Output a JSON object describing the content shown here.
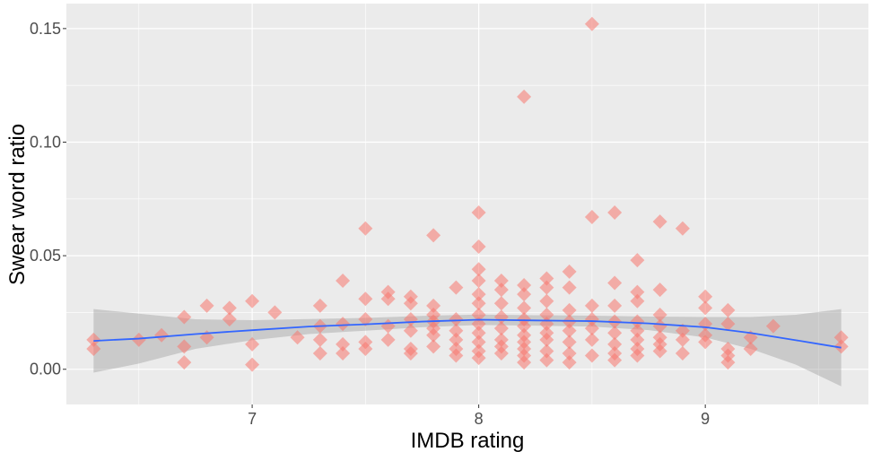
{
  "chart_data": {
    "type": "scatter",
    "title": "",
    "xlabel": "IMDB rating",
    "ylabel": "Swear word ratio",
    "xlim": [
      6.18,
      9.72
    ],
    "ylim": [
      -0.0155,
      0.161
    ],
    "x_ticks": [
      {
        "v": 7,
        "label": "7"
      },
      {
        "v": 8,
        "label": "8"
      },
      {
        "v": 9,
        "label": "9"
      }
    ],
    "y_ticks": [
      {
        "v": 0.0,
        "label": "0.00"
      },
      {
        "v": 0.05,
        "label": "0.05"
      },
      {
        "v": 0.1,
        "label": "0.10"
      },
      {
        "v": 0.15,
        "label": "0.15"
      }
    ],
    "grid": true,
    "legend": "none",
    "colors": {
      "panel": "#ebebeb",
      "grid": "#ffffff",
      "point": "#f8766d",
      "smooth_line": "#3366ff",
      "ribbon": "#999999"
    },
    "points": [
      [
        6.3,
        0.013
      ],
      [
        6.3,
        0.009
      ],
      [
        6.5,
        0.013
      ],
      [
        6.6,
        0.015
      ],
      [
        6.7,
        0.023
      ],
      [
        6.7,
        0.01
      ],
      [
        6.7,
        0.003
      ],
      [
        6.8,
        0.028
      ],
      [
        6.8,
        0.014
      ],
      [
        6.9,
        0.027
      ],
      [
        6.9,
        0.022
      ],
      [
        7.0,
        0.03
      ],
      [
        7.0,
        0.011
      ],
      [
        7.0,
        0.002
      ],
      [
        7.1,
        0.025
      ],
      [
        7.2,
        0.014
      ],
      [
        7.3,
        0.028
      ],
      [
        7.3,
        0.019
      ],
      [
        7.3,
        0.013
      ],
      [
        7.3,
        0.007
      ],
      [
        7.4,
        0.039
      ],
      [
        7.4,
        0.02
      ],
      [
        7.4,
        0.011
      ],
      [
        7.4,
        0.007
      ],
      [
        7.5,
        0.062
      ],
      [
        7.5,
        0.031
      ],
      [
        7.5,
        0.022
      ],
      [
        7.5,
        0.012
      ],
      [
        7.5,
        0.009
      ],
      [
        7.6,
        0.034
      ],
      [
        7.6,
        0.031
      ],
      [
        7.6,
        0.019
      ],
      [
        7.6,
        0.013
      ],
      [
        7.7,
        0.032
      ],
      [
        7.7,
        0.029
      ],
      [
        7.7,
        0.022
      ],
      [
        7.7,
        0.017
      ],
      [
        7.7,
        0.009
      ],
      [
        7.7,
        0.007
      ],
      [
        7.8,
        0.059
      ],
      [
        7.8,
        0.028
      ],
      [
        7.8,
        0.024
      ],
      [
        7.8,
        0.021
      ],
      [
        7.8,
        0.018
      ],
      [
        7.8,
        0.015
      ],
      [
        7.8,
        0.01
      ],
      [
        7.9,
        0.036
      ],
      [
        7.9,
        0.022
      ],
      [
        7.9,
        0.017
      ],
      [
        7.9,
        0.013
      ],
      [
        7.9,
        0.009
      ],
      [
        7.9,
        0.006
      ],
      [
        8.0,
        0.069
      ],
      [
        8.0,
        0.054
      ],
      [
        8.0,
        0.044
      ],
      [
        8.0,
        0.039
      ],
      [
        8.0,
        0.033
      ],
      [
        8.0,
        0.029
      ],
      [
        8.0,
        0.024
      ],
      [
        8.0,
        0.02
      ],
      [
        8.0,
        0.016
      ],
      [
        8.0,
        0.012
      ],
      [
        8.0,
        0.008
      ],
      [
        8.0,
        0.005
      ],
      [
        8.1,
        0.039
      ],
      [
        8.1,
        0.035
      ],
      [
        8.1,
        0.029
      ],
      [
        8.1,
        0.023
      ],
      [
        8.1,
        0.018
      ],
      [
        8.1,
        0.013
      ],
      [
        8.1,
        0.01
      ],
      [
        8.1,
        0.007
      ],
      [
        8.2,
        0.12
      ],
      [
        8.2,
        0.037
      ],
      [
        8.2,
        0.033
      ],
      [
        8.2,
        0.027
      ],
      [
        8.2,
        0.022
      ],
      [
        8.2,
        0.019
      ],
      [
        8.2,
        0.015
      ],
      [
        8.2,
        0.012
      ],
      [
        8.2,
        0.009
      ],
      [
        8.2,
        0.006
      ],
      [
        8.2,
        0.003
      ],
      [
        8.3,
        0.04
      ],
      [
        8.3,
        0.036
      ],
      [
        8.3,
        0.03
      ],
      [
        8.3,
        0.024
      ],
      [
        8.3,
        0.02
      ],
      [
        8.3,
        0.016
      ],
      [
        8.3,
        0.013
      ],
      [
        8.3,
        0.008
      ],
      [
        8.3,
        0.004
      ],
      [
        8.4,
        0.043
      ],
      [
        8.4,
        0.036
      ],
      [
        8.4,
        0.026
      ],
      [
        8.4,
        0.021
      ],
      [
        8.4,
        0.017
      ],
      [
        8.4,
        0.012
      ],
      [
        8.4,
        0.007
      ],
      [
        8.4,
        0.003
      ],
      [
        8.5,
        0.152
      ],
      [
        8.5,
        0.067
      ],
      [
        8.5,
        0.028
      ],
      [
        8.5,
        0.022
      ],
      [
        8.5,
        0.018
      ],
      [
        8.5,
        0.013
      ],
      [
        8.5,
        0.006
      ],
      [
        8.6,
        0.069
      ],
      [
        8.6,
        0.038
      ],
      [
        8.6,
        0.028
      ],
      [
        8.6,
        0.021
      ],
      [
        8.6,
        0.016
      ],
      [
        8.6,
        0.011
      ],
      [
        8.6,
        0.007
      ],
      [
        8.6,
        0.004
      ],
      [
        8.7,
        0.048
      ],
      [
        8.7,
        0.034
      ],
      [
        8.7,
        0.03
      ],
      [
        8.7,
        0.021
      ],
      [
        8.7,
        0.017
      ],
      [
        8.7,
        0.013
      ],
      [
        8.7,
        0.009
      ],
      [
        8.7,
        0.006
      ],
      [
        8.8,
        0.065
      ],
      [
        8.8,
        0.035
      ],
      [
        8.8,
        0.024
      ],
      [
        8.8,
        0.019
      ],
      [
        8.8,
        0.014
      ],
      [
        8.8,
        0.011
      ],
      [
        8.8,
        0.008
      ],
      [
        8.9,
        0.062
      ],
      [
        8.9,
        0.017
      ],
      [
        8.9,
        0.013
      ],
      [
        8.9,
        0.007
      ],
      [
        9.0,
        0.032
      ],
      [
        9.0,
        0.027
      ],
      [
        9.0,
        0.02
      ],
      [
        9.0,
        0.015
      ],
      [
        9.0,
        0.012
      ],
      [
        9.1,
        0.026
      ],
      [
        9.1,
        0.02
      ],
      [
        9.1,
        0.009
      ],
      [
        9.1,
        0.006
      ],
      [
        9.1,
        0.003
      ],
      [
        9.2,
        0.014
      ],
      [
        9.2,
        0.009
      ],
      [
        9.3,
        0.019
      ],
      [
        9.6,
        0.014
      ],
      [
        9.6,
        0.01
      ]
    ],
    "smooth": [
      {
        "x": 6.3,
        "y": 0.0125,
        "lo": -0.0015,
        "hi": 0.0265
      },
      {
        "x": 6.5,
        "y": 0.0135,
        "lo": 0.0025,
        "hi": 0.0245
      },
      {
        "x": 6.75,
        "y": 0.0155,
        "lo": 0.009,
        "hi": 0.022
      },
      {
        "x": 7.0,
        "y": 0.0172,
        "lo": 0.0128,
        "hi": 0.0216
      },
      {
        "x": 7.25,
        "y": 0.0188,
        "lo": 0.0155,
        "hi": 0.0221
      },
      {
        "x": 7.5,
        "y": 0.0198,
        "lo": 0.017,
        "hi": 0.0226
      },
      {
        "x": 7.75,
        "y": 0.021,
        "lo": 0.0185,
        "hi": 0.0235
      },
      {
        "x": 8.0,
        "y": 0.0218,
        "lo": 0.0195,
        "hi": 0.0241
      },
      {
        "x": 8.25,
        "y": 0.0215,
        "lo": 0.0192,
        "hi": 0.0238
      },
      {
        "x": 8.5,
        "y": 0.0212,
        "lo": 0.0188,
        "hi": 0.0236
      },
      {
        "x": 8.75,
        "y": 0.0202,
        "lo": 0.0172,
        "hi": 0.0232
      },
      {
        "x": 9.0,
        "y": 0.0185,
        "lo": 0.014,
        "hi": 0.023
      },
      {
        "x": 9.2,
        "y": 0.016,
        "lo": 0.009,
        "hi": 0.023
      },
      {
        "x": 9.4,
        "y": 0.0128,
        "lo": 0.002,
        "hi": 0.024
      },
      {
        "x": 9.6,
        "y": 0.0095,
        "lo": -0.0075,
        "hi": 0.0265
      }
    ]
  }
}
